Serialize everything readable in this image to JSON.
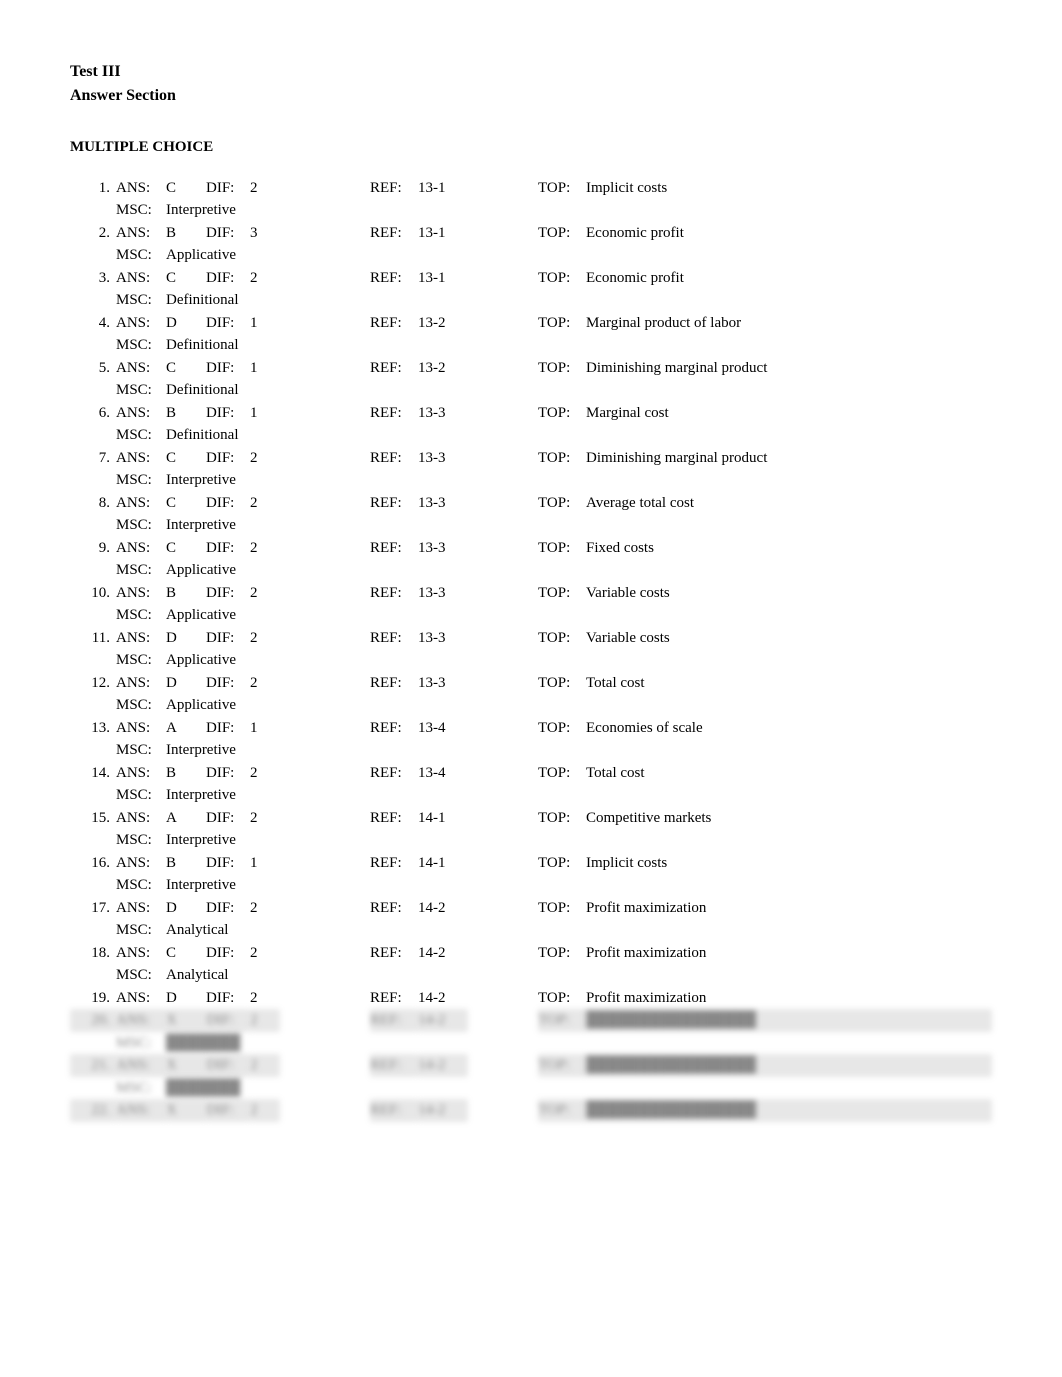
{
  "header": {
    "title": "Test III",
    "subtitle": "Answer Section"
  },
  "section_heading": "MULTIPLE CHOICE",
  "labels": {
    "ans": "ANS:",
    "dif": "DIF:",
    "ref": "REF:",
    "top": "TOP:",
    "msc": "MSC:"
  },
  "rows": [
    {
      "num": "1.",
      "ans": "C",
      "dif": "2",
      "ref": "13-1",
      "top": "Implicit costs",
      "msc": "Interpretive"
    },
    {
      "num": "2.",
      "ans": "B",
      "dif": "3",
      "ref": "13-1",
      "top": "Economic profit",
      "msc": "Applicative"
    },
    {
      "num": "3.",
      "ans": "C",
      "dif": "2",
      "ref": "13-1",
      "top": "Economic profit",
      "msc": "Definitional"
    },
    {
      "num": "4.",
      "ans": "D",
      "dif": "1",
      "ref": "13-2",
      "top": "Marginal product of labor",
      "msc": "Definitional"
    },
    {
      "num": "5.",
      "ans": "C",
      "dif": "1",
      "ref": "13-2",
      "top": "Diminishing marginal product",
      "msc": "Definitional"
    },
    {
      "num": "6.",
      "ans": "B",
      "dif": "1",
      "ref": "13-3",
      "top": "Marginal cost",
      "msc": "Definitional"
    },
    {
      "num": "7.",
      "ans": "C",
      "dif": "2",
      "ref": "13-3",
      "top": "Diminishing marginal product",
      "msc": "Interpretive"
    },
    {
      "num": "8.",
      "ans": "C",
      "dif": "2",
      "ref": "13-3",
      "top": "Average total cost",
      "msc": "Interpretive"
    },
    {
      "num": "9.",
      "ans": "C",
      "dif": "2",
      "ref": "13-3",
      "top": "Fixed costs",
      "msc": "Applicative"
    },
    {
      "num": "10.",
      "ans": "B",
      "dif": "2",
      "ref": "13-3",
      "top": "Variable costs",
      "msc": "Applicative"
    },
    {
      "num": "11.",
      "ans": "D",
      "dif": "2",
      "ref": "13-3",
      "top": "Variable costs",
      "msc": "Applicative"
    },
    {
      "num": "12.",
      "ans": "D",
      "dif": "2",
      "ref": "13-3",
      "top": "Total cost",
      "msc": "Applicative"
    },
    {
      "num": "13.",
      "ans": "A",
      "dif": "1",
      "ref": "13-4",
      "top": "Economies of scale",
      "msc": "Interpretive"
    },
    {
      "num": "14.",
      "ans": "B",
      "dif": "2",
      "ref": "13-4",
      "top": "Total cost",
      "msc": "Interpretive"
    },
    {
      "num": "15.",
      "ans": "A",
      "dif": "2",
      "ref": "14-1",
      "top": "Competitive markets",
      "msc": "Interpretive"
    },
    {
      "num": "16.",
      "ans": "B",
      "dif": "1",
      "ref": "14-1",
      "top": "Implicit costs",
      "msc": "Interpretive"
    },
    {
      "num": "17.",
      "ans": "D",
      "dif": "2",
      "ref": "14-2",
      "top": "Profit maximization",
      "msc": "Analytical"
    },
    {
      "num": "18.",
      "ans": "C",
      "dif": "2",
      "ref": "14-2",
      "top": "Profit maximization",
      "msc": "Analytical"
    },
    {
      "num": "19.",
      "ans": "D",
      "dif": "2",
      "ref": "14-2",
      "top": "Profit maximization",
      "msc": ""
    }
  ],
  "blurred_rows": [
    {
      "num": "20.",
      "ans": "X",
      "dif": "2",
      "ref": "14-2",
      "top": "████████████████",
      "msc": "███████"
    },
    {
      "num": "21.",
      "ans": "X",
      "dif": "2",
      "ref": "14-2",
      "top": "████████████████",
      "msc": "███████"
    },
    {
      "num": "22.",
      "ans": "X",
      "dif": "2",
      "ref": "14-2",
      "top": "████████████████",
      "msc": ""
    }
  ]
}
